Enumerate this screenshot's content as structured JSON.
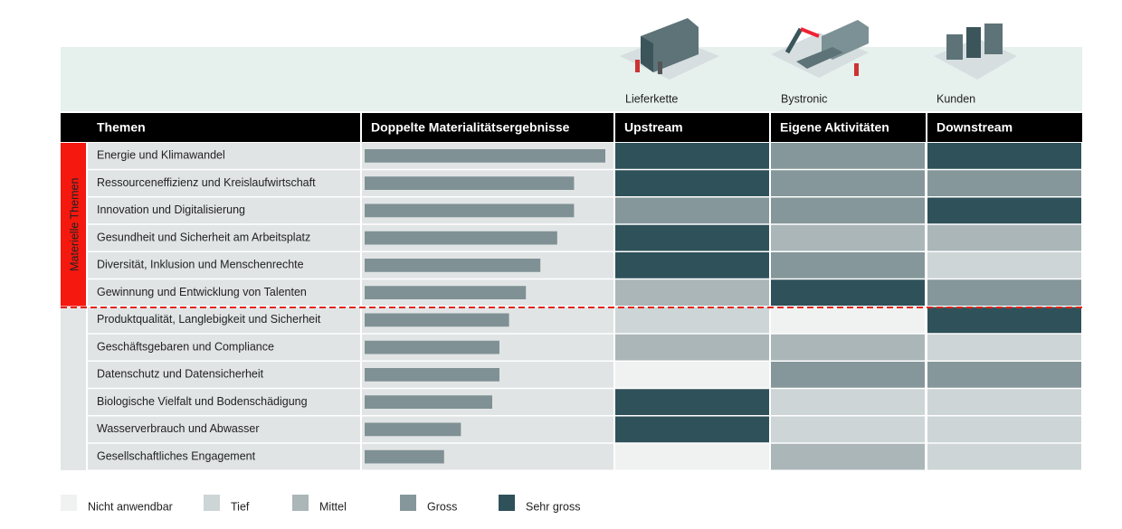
{
  "chart_data": {
    "type": "materiality-matrix",
    "headers": [
      "Themen",
      "Doppelte Materialitätsergebnisse",
      "Upstream",
      "Eigene Aktivitäten",
      "Downstream"
    ],
    "stages": [
      "Lieferkette",
      "Bystronic",
      "Kunden"
    ],
    "bar_color": "#7f9194",
    "groups": [
      {
        "name": "Materielle Themen",
        "color": "#f5180f",
        "rows": [
          {
            "topic": "Energie und Klimawandel",
            "value": 100,
            "levels": [
              4,
              3,
              4
            ]
          },
          {
            "topic": "Ressourceneffizienz und Kreislaufwirtschaft",
            "value": 87,
            "levels": [
              4,
              3,
              3
            ]
          },
          {
            "topic": "Innovation und Digitalisierung",
            "value": 87,
            "levels": [
              3,
              3,
              4
            ]
          },
          {
            "topic": "Gesundheit und Sicherheit am Arbeitsplatz",
            "value": 80,
            "levels": [
              4,
              2,
              2
            ]
          },
          {
            "topic": "Diversität, Inklusion und Menschenrechte",
            "value": 73,
            "levels": [
              4,
              3,
              1
            ]
          },
          {
            "topic": "Gewinnung und Entwicklung von Talenten",
            "value": 67,
            "levels": [
              2,
              4,
              3
            ]
          }
        ]
      },
      {
        "color": "#e3e6e6",
        "rows": [
          {
            "topic": "Produktqualität, Langlebigkeit und Sicherheit",
            "value": 60,
            "levels": [
              1,
              0,
              4
            ]
          },
          {
            "topic": "Geschäftsgebaren und Compliance",
            "value": 56,
            "levels": [
              2,
              2,
              1
            ]
          },
          {
            "topic": "Datenschutz und Datensicherheit",
            "value": 56,
            "levels": [
              0,
              3,
              3
            ]
          },
          {
            "topic": "Biologische Vielfalt und Bodenschädigung",
            "value": 53,
            "levels": [
              4,
              1,
              1
            ]
          },
          {
            "topic": "Wasserverbrauch und Abwasser",
            "value": 40,
            "levels": [
              4,
              1,
              1
            ]
          },
          {
            "topic": "Gesellschaftliches Engagement",
            "value": 33,
            "levels": [
              0,
              2,
              1
            ]
          }
        ]
      }
    ],
    "legend": [
      {
        "name": "Nicht anwendbar",
        "color": "#f0f1f1"
      },
      {
        "name": "Tief",
        "color": "#cdd5d6"
      },
      {
        "name": "Mittel",
        "color": "#aab6b8"
      },
      {
        "name": "Gross",
        "color": "#85979a"
      },
      {
        "name": "Sehr gross",
        "color": "#2f5159"
      }
    ]
  }
}
